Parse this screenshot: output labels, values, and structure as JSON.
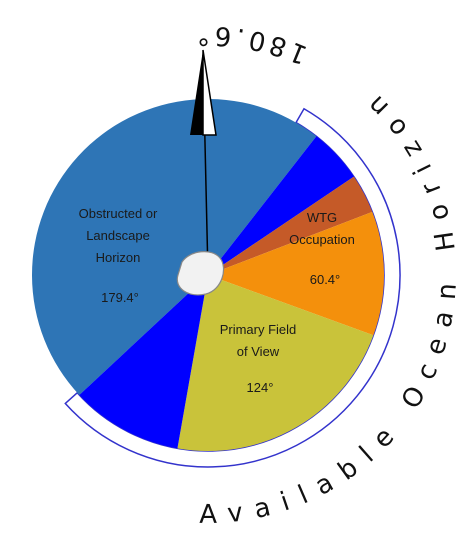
{
  "sectors": [
    {
      "lines": [
        "Obstructed or",
        "Landscape",
        "Horizon"
      ],
      "value": "179.4°"
    },
    {
      "lines": [
        "WTG",
        "Occupation"
      ],
      "value": "60.4°"
    },
    {
      "lines": [
        "Primary Field",
        "of View"
      ],
      "value": "124°"
    }
  ],
  "arc_label": {
    "text": "Available Ocean Horizon",
    "value": "180.6°"
  }
}
